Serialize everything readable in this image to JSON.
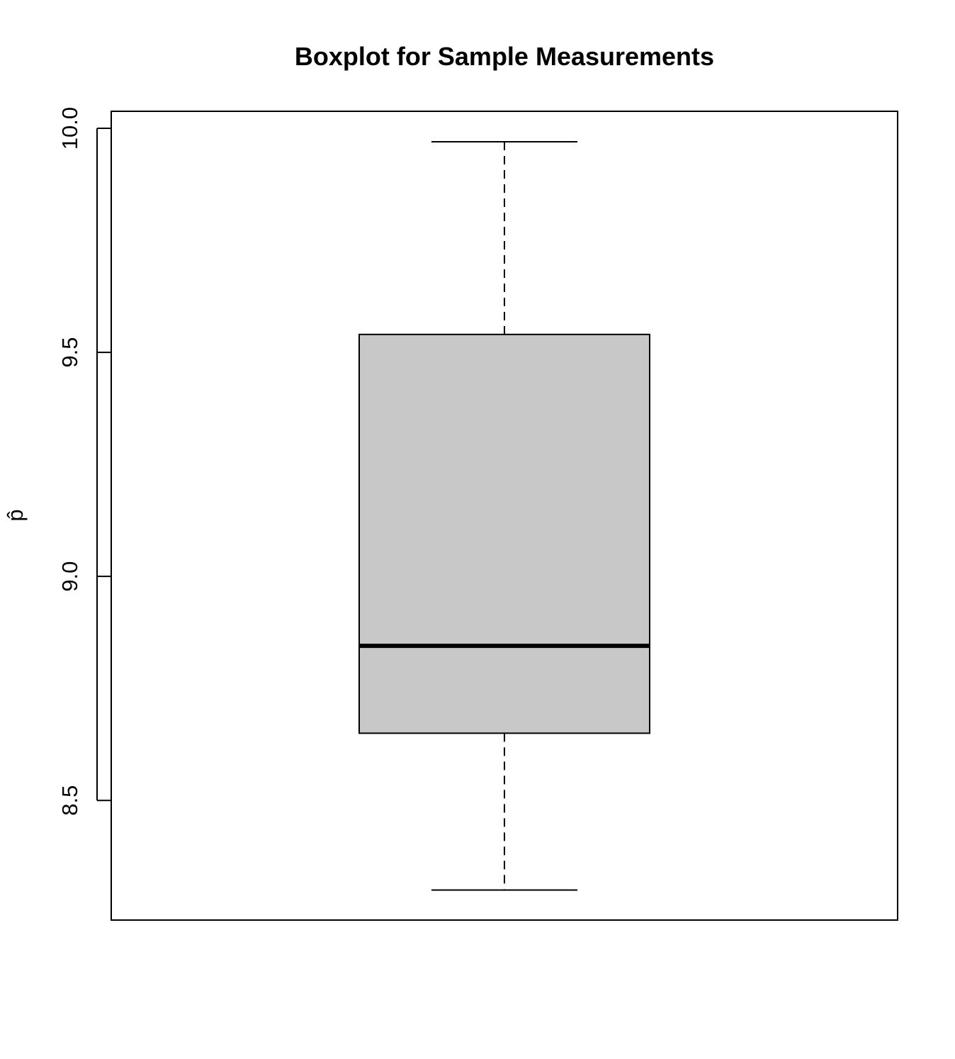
{
  "chart_data": {
    "type": "boxplot",
    "title": "Boxplot for Sample Measurements",
    "xlabel": "",
    "ylabel": "p̂",
    "ylim": [
      8.233,
      10.038
    ],
    "yticks": [
      "8.5",
      "9.0",
      "9.5",
      "10.0"
    ],
    "grid": false,
    "boxes": [
      {
        "min": 8.3,
        "q1": 8.65,
        "median": 8.845,
        "q3": 9.54,
        "max": 9.97
      }
    ],
    "colors": {
      "box_fill": "#c8c8c8",
      "stroke": "#000000"
    }
  }
}
